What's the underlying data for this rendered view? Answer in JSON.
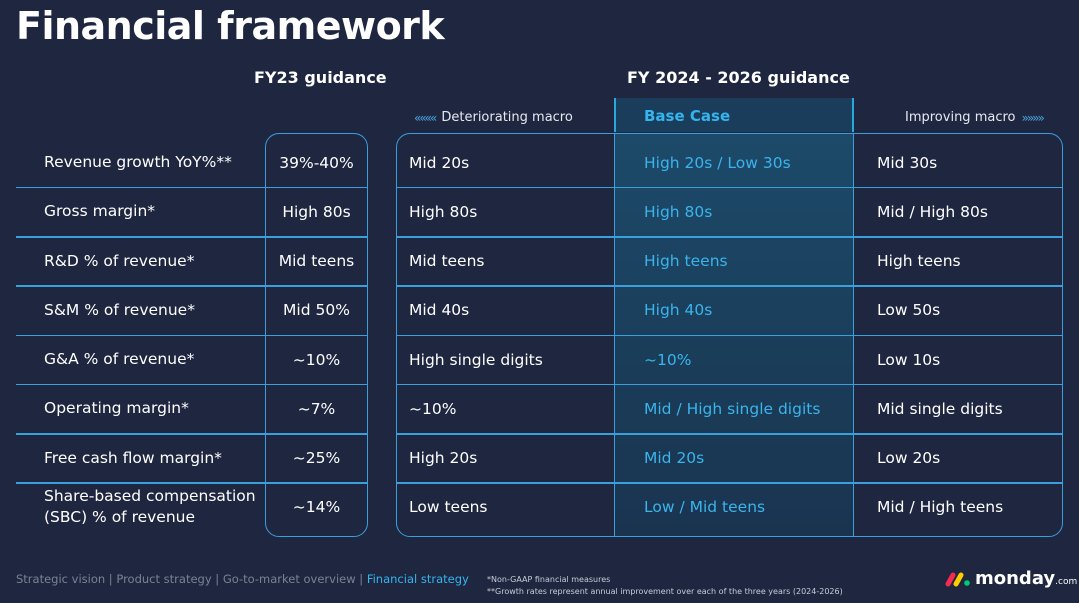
{
  "title": "Financial framework",
  "headers": {
    "fy23": "FY23 guidance",
    "fy24_26": "FY 2024 - 2026 guidance",
    "deteriorating": "Deteriorating macro",
    "deteriorating_arrow": "««««",
    "base_case": "Base Case",
    "improving": "Improving macro",
    "improving_arrow": "»»»»"
  },
  "rows": [
    {
      "label": "Revenue growth YoY%**",
      "fy23": "39%-40%",
      "det": "Mid 20s",
      "base": "High 20s / Low 30s",
      "imp": "Mid 30s"
    },
    {
      "label": "Gross margin*",
      "fy23": "High 80s",
      "det": "High 80s",
      "base": "High 80s",
      "imp": "Mid / High 80s"
    },
    {
      "label": "R&D % of revenue*",
      "fy23": "Mid teens",
      "det": "Mid teens",
      "base": "High teens",
      "imp": "High teens"
    },
    {
      "label": "S&M % of revenue*",
      "fy23": "Mid 50%",
      "det": "Mid 40s",
      "base": "High 40s",
      "imp": "Low 50s"
    },
    {
      "label": "G&A % of revenue*",
      "fy23": "~10%",
      "det": "High single digits",
      "base": "~10%",
      "imp": "Low 10s"
    },
    {
      "label": "Operating margin*",
      "fy23": "~7%",
      "det": "~10%",
      "base": "Mid / High single digits",
      "imp": "Mid single digits"
    },
    {
      "label": "Free cash flow margin*",
      "fy23": "~25%",
      "det": "High 20s",
      "base": "Mid 20s",
      "imp": "Low 20s"
    },
    {
      "label": "Share-based compensation (SBC) % of revenue",
      "fy23": "~14%",
      "det": "Low teens",
      "base": "Low / Mid teens",
      "imp": "Mid / High teens"
    }
  ],
  "footer": {
    "nav_items": [
      "Strategic vision",
      "Product strategy",
      "Go-to-market overview",
      "Financial strategy"
    ],
    "separator": " | ",
    "note1": "*Non-GAAP financial measures",
    "note2": "**Growth rates represent annual improvement over each of the three years (2024-2026)"
  },
  "logo": {
    "name": "monday",
    "suffix": ".com"
  },
  "colors": {
    "background": "#1e2640",
    "accent": "#35b5ee",
    "border": "#3aa0dc"
  }
}
